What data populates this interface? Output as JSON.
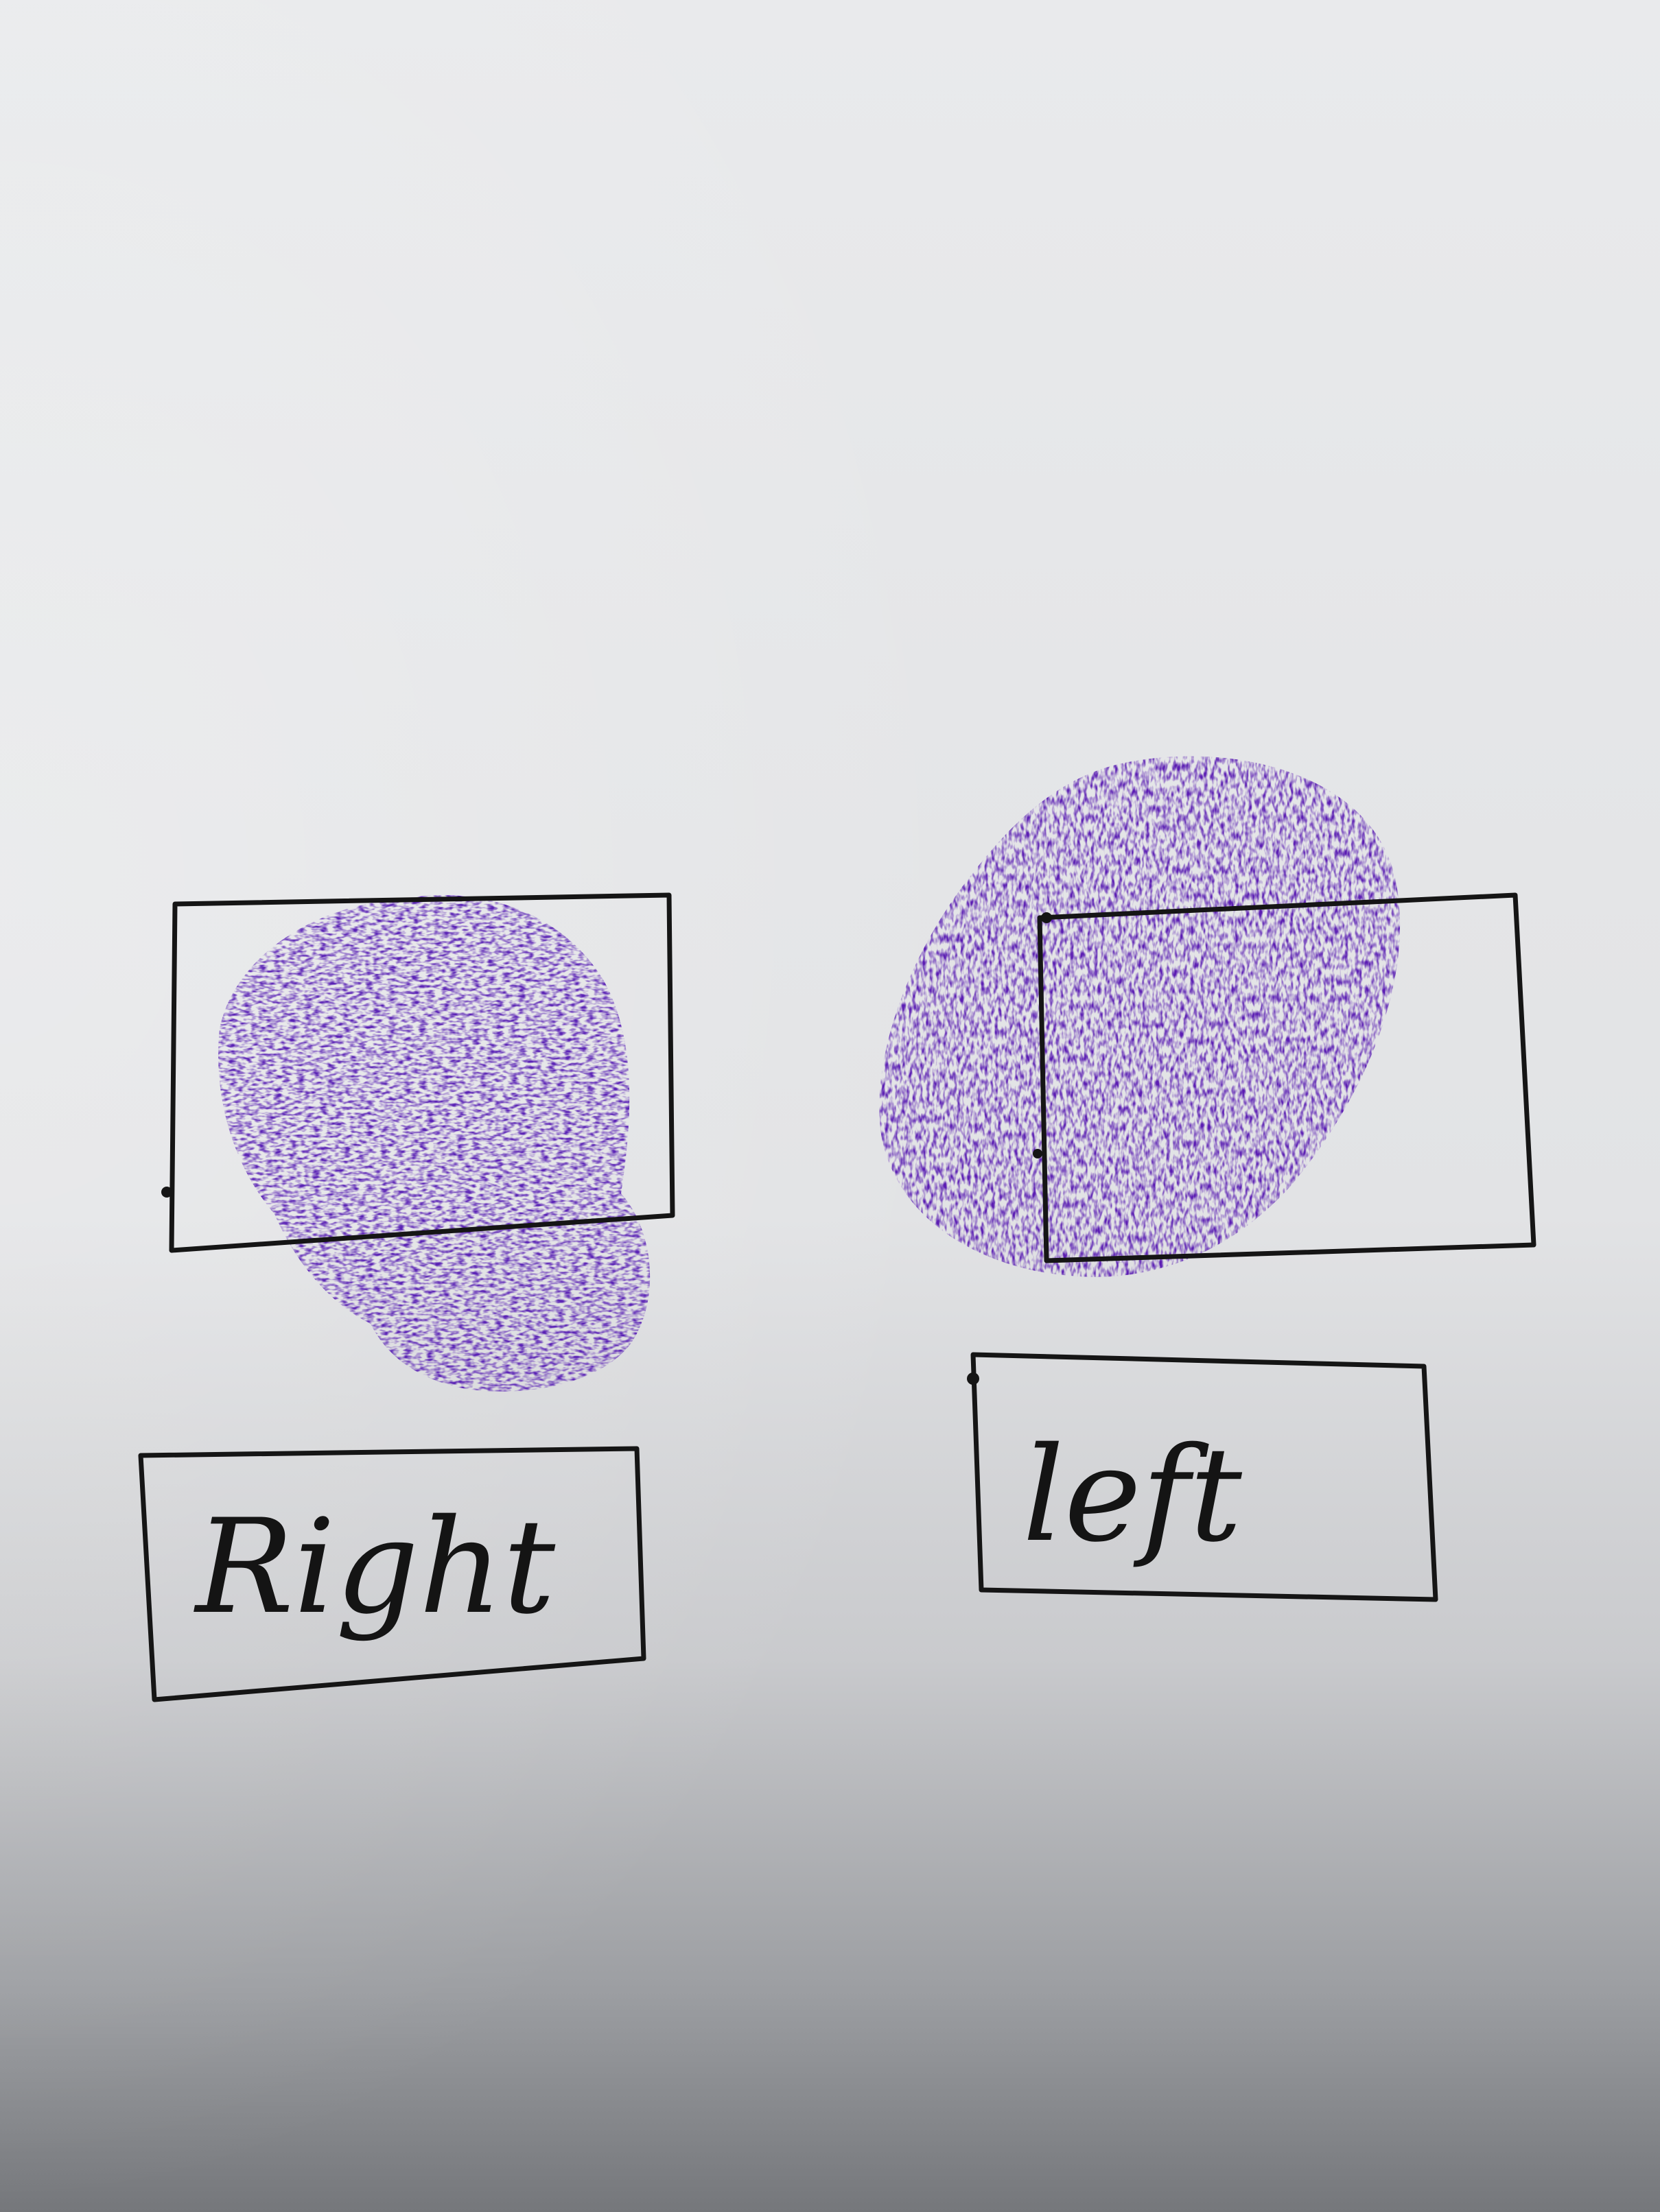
{
  "labels": {
    "right": "Right",
    "left": "left"
  },
  "colors": {
    "paper_top": "#e6e7e9",
    "paper_bottom": "#7a7c80",
    "ink_purple": "#5a1fb8",
    "pen_black": "#141414"
  }
}
